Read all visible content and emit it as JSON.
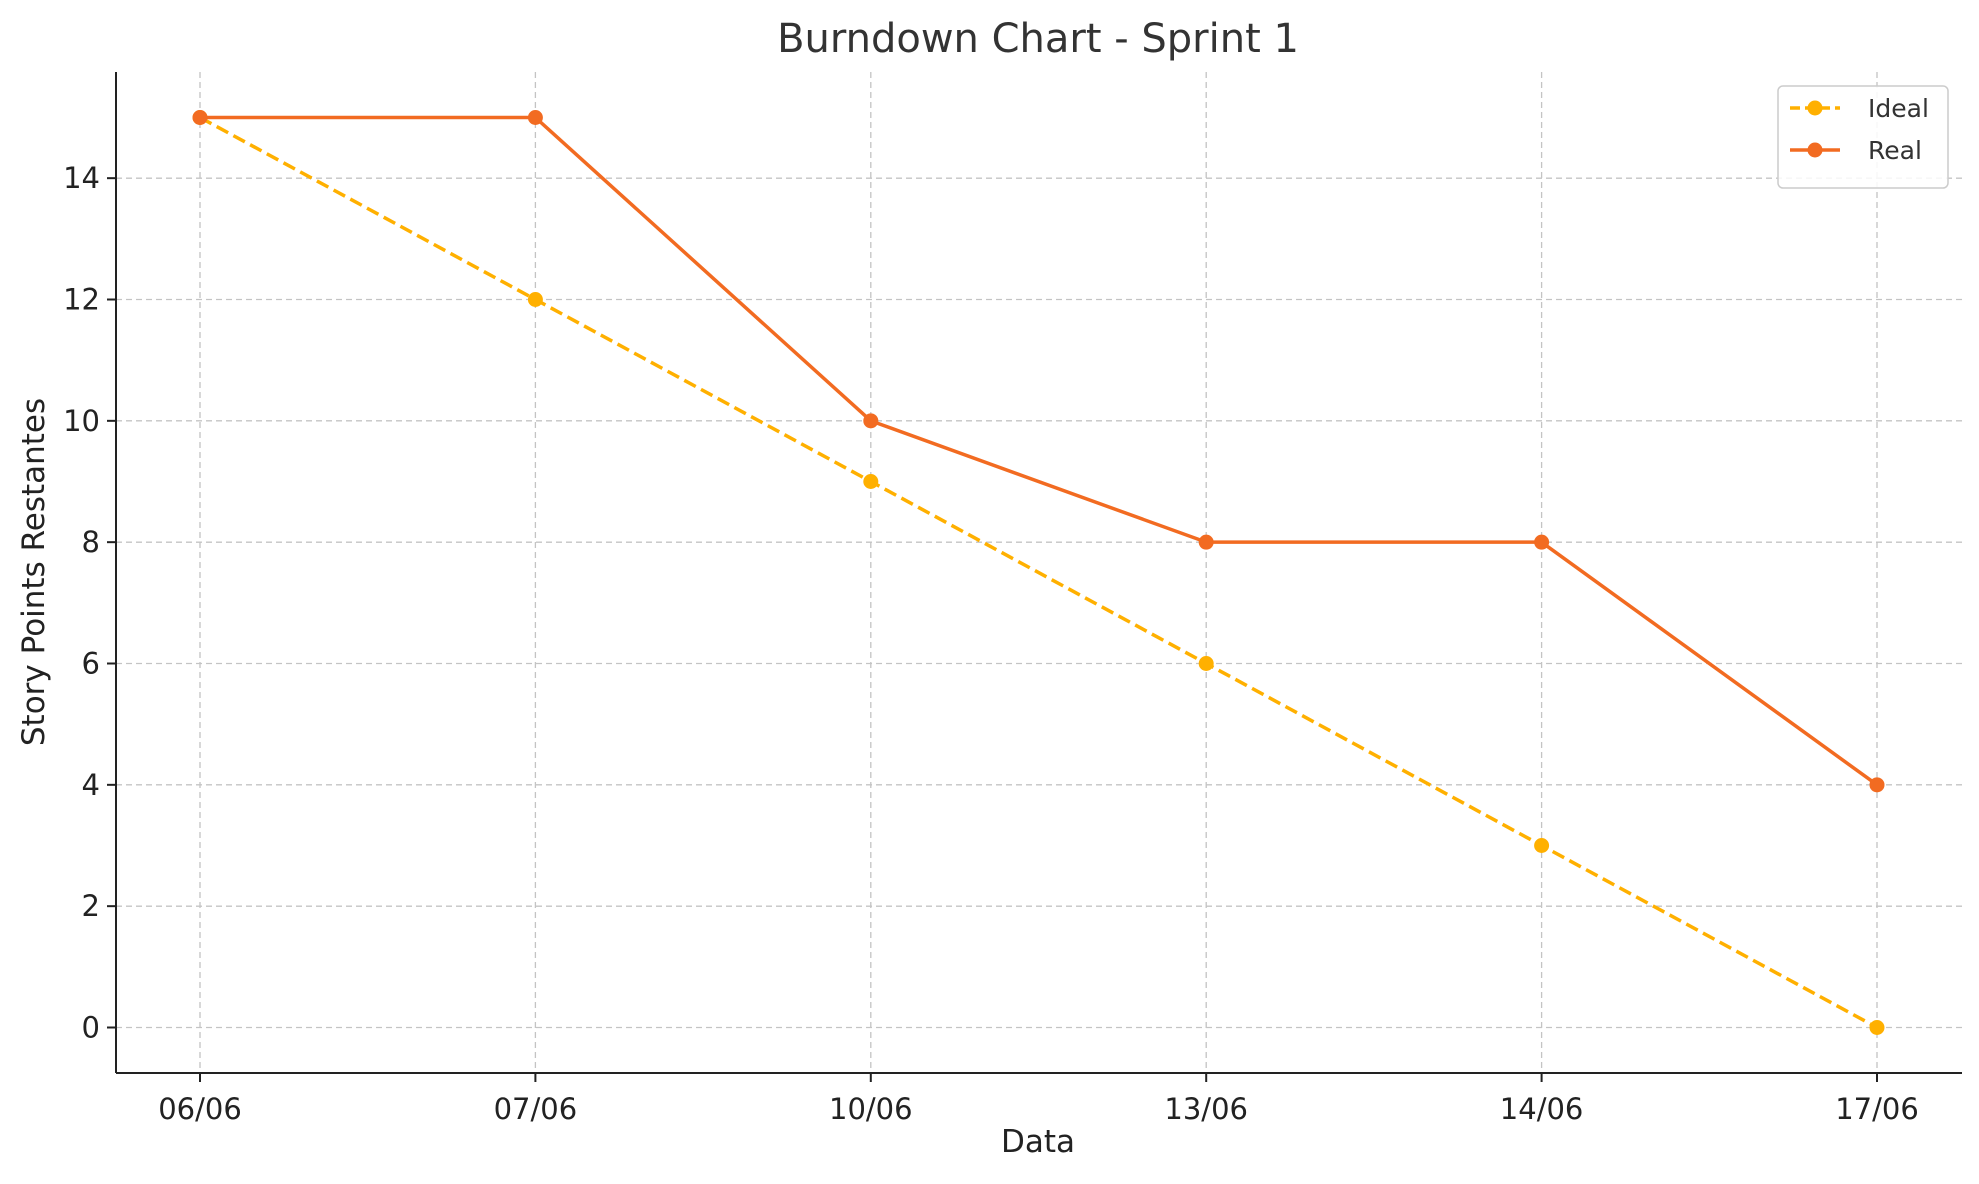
{
  "chart_data": {
    "type": "line",
    "title": "Burndown Chart - Sprint 1",
    "xlabel": "Data",
    "ylabel": "Story Points Restantes",
    "categories": [
      "06/06",
      "07/06",
      "10/06",
      "13/06",
      "14/06",
      "17/06"
    ],
    "yticks": [
      0,
      2,
      4,
      6,
      8,
      10,
      12,
      14
    ],
    "ylim": [
      -0.75,
      15.75
    ],
    "grid": true,
    "legend_position": "top-right",
    "series": [
      {
        "name": "Ideal",
        "values": [
          15,
          12,
          9,
          6,
          3,
          0
        ],
        "color": "#FFB000",
        "line_style": "dashed",
        "marker": "circle"
      },
      {
        "name": "Real",
        "values": [
          15,
          15,
          10,
          8,
          8,
          4
        ],
        "color": "#F26B21",
        "line_style": "solid",
        "marker": "circle"
      }
    ]
  }
}
